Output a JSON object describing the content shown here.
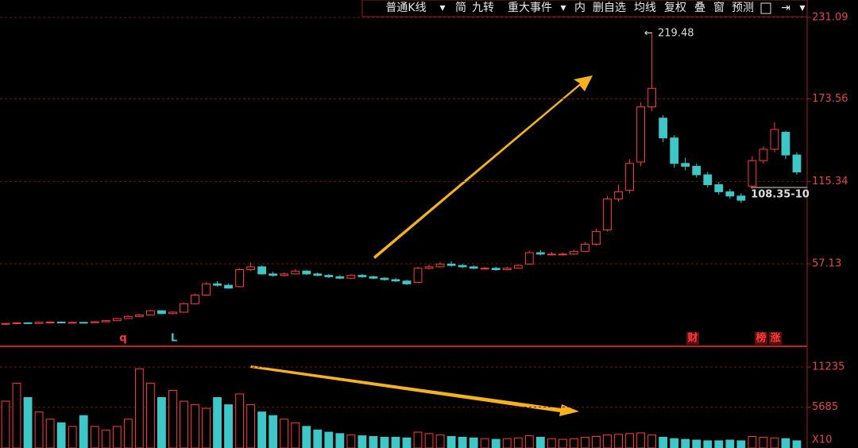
{
  "toolbar": {
    "items": [
      "普通K线",
      "简",
      "九转",
      "重大事件",
      "内",
      "删自选",
      "均线",
      "复权",
      "叠",
      "窗",
      "预测"
    ]
  },
  "chart_data": [
    {
      "type": "candlestick",
      "up_color": "#ff3b3b",
      "down_color": "#3fc6c6",
      "grid": true,
      "ylim": [
        0,
        243.4
      ],
      "yticks": [
        57.13,
        115.34,
        173.56,
        231.09
      ],
      "annotations": [
        "q",
        "L",
        "财",
        "榜",
        "涨",
        "108.35-10"
      ],
      "series": [
        {
          "name": "K线",
          "open": [
            14.6,
            15,
            15.5,
            15,
            15.8,
            16,
            15.5,
            15.8,
            15.6,
            16.2,
            17,
            18.5,
            20,
            21,
            24,
            22,
            23,
            29,
            35,
            43,
            42,
            41,
            53,
            55,
            50,
            49,
            50,
            52,
            50,
            49,
            48,
            47,
            49,
            48,
            47,
            46,
            45,
            44,
            54,
            55,
            57,
            56,
            55,
            54,
            54,
            53,
            54,
            57,
            65,
            64,
            64,
            64,
            66,
            71,
            81,
            103,
            109,
            129,
            168,
            160,
            146,
            128,
            126,
            120,
            113,
            108,
            105,
            112,
            130,
            138,
            150,
            134
          ],
          "high": [
            15.4,
            15.9,
            15.8,
            16.1,
            16.5,
            16.3,
            16.2,
            16.1,
            16.6,
            17.5,
            19,
            20.6,
            21.8,
            24.8,
            24.5,
            23.6,
            29.8,
            36,
            44,
            45,
            43,
            54,
            58,
            56,
            51.5,
            51,
            53.5,
            52.8,
            51,
            50,
            49,
            49.8,
            50,
            48.8,
            47.8,
            47,
            46,
            55,
            56.5,
            58.5,
            59,
            57,
            56,
            55,
            55,
            55,
            57,
            66.5,
            67,
            65.5,
            65,
            67,
            72.5,
            82,
            105,
            113,
            131,
            171,
            219.48,
            162,
            148,
            132,
            128,
            122,
            115,
            110,
            107,
            133,
            140,
            157,
            151,
            136
          ],
          "low": [
            14.2,
            14.7,
            14.7,
            14.8,
            15.4,
            15.1,
            15.2,
            15.3,
            15.4,
            16,
            16.8,
            18.2,
            19.6,
            20.7,
            21.5,
            21.4,
            22.6,
            28.5,
            34.5,
            41,
            39.5,
            40.5,
            52,
            49.5,
            48,
            48.2,
            49.5,
            49.2,
            48.3,
            47.2,
            46.4,
            46.5,
            47.3,
            46.2,
            45.2,
            44.3,
            42.2,
            43.5,
            53,
            54.5,
            55,
            54.2,
            53.2,
            53,
            52.2,
            52.5,
            53.5,
            56.5,
            63,
            63,
            63,
            63.5,
            65.5,
            70,
            80,
            101,
            107,
            126,
            165,
            143,
            125,
            123,
            118,
            111,
            106,
            103,
            100,
            110,
            128,
            136,
            131,
            120
          ],
          "close": [
            15,
            15.5,
            15,
            15.8,
            16,
            15.5,
            15.8,
            15.6,
            16.2,
            17,
            18.5,
            20,
            21,
            24,
            22,
            23,
            29,
            35,
            43,
            42,
            40,
            53,
            55,
            50,
            49,
            50,
            52,
            50,
            49,
            48,
            47,
            49,
            48,
            47,
            46,
            45,
            43,
            54,
            55,
            57,
            56,
            55,
            54,
            54,
            53,
            54,
            56,
            65,
            64,
            64,
            64,
            66,
            71,
            80,
            103,
            108,
            128,
            168,
            181,
            146,
            128,
            126,
            120,
            113,
            108,
            105,
            102,
            130,
            138,
            152,
            134,
            122
          ]
        }
      ]
    },
    {
      "type": "bar",
      "ylim": [
        0,
        14000
      ],
      "yticks": [
        5685,
        11235
      ],
      "unit_label": "X10",
      "values": [
        6500,
        9000,
        7000,
        5000,
        4000,
        3500,
        3000,
        4500,
        3000,
        2500,
        3000,
        4000,
        11000,
        9000,
        7000,
        8000,
        6500,
        6000,
        5500,
        7000,
        6000,
        7500,
        6000,
        5000,
        4500,
        4000,
        3500,
        3000,
        2500,
        2200,
        2000,
        1800,
        1700,
        1600,
        1500,
        1500,
        1400,
        2200,
        2000,
        1800,
        1600,
        1500,
        1400,
        1300,
        1200,
        1300,
        1400,
        1700,
        1500,
        1300,
        1200,
        1300,
        1500,
        1600,
        1800,
        1900,
        2000,
        2100,
        1800,
        1500,
        1300,
        1200,
        1100,
        1000,
        1000,
        1100,
        1000,
        1600,
        1500,
        1400,
        1300,
        1000
      ]
    }
  ]
}
